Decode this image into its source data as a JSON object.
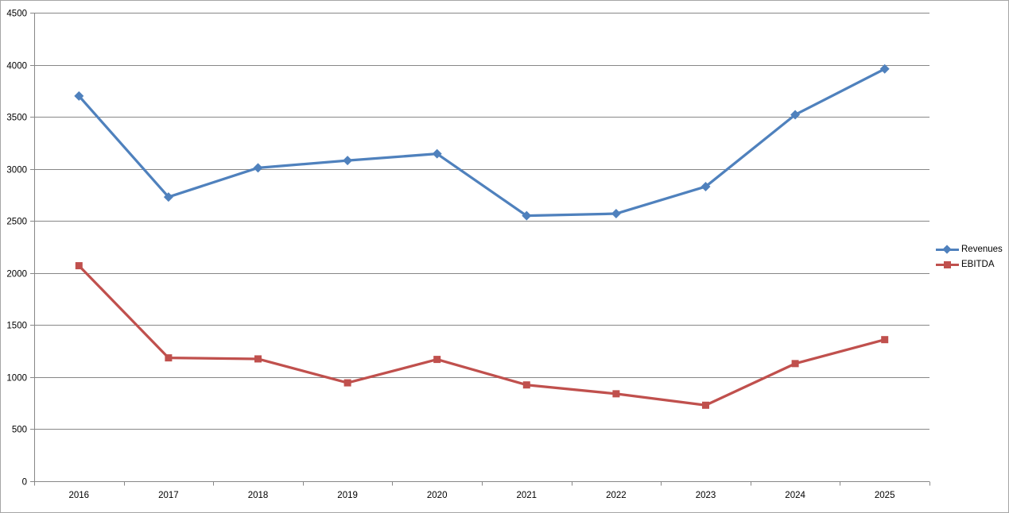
{
  "chart_data": {
    "type": "line",
    "title": "",
    "categories": [
      "2016",
      "2017",
      "2018",
      "2019",
      "2020",
      "2021",
      "2022",
      "2023",
      "2024",
      "2025"
    ],
    "series": [
      {
        "name": "Revenues",
        "color": "#4F81BD",
        "marker": "diamond",
        "values": [
          3700,
          2730,
          3010,
          3080,
          3145,
          2550,
          2570,
          2830,
          3520,
          3960
        ]
      },
      {
        "name": "EBITDA",
        "color": "#C0504D",
        "marker": "square",
        "values": [
          2070,
          1185,
          1175,
          945,
          1170,
          925,
          840,
          730,
          1130,
          1360
        ]
      }
    ],
    "xlabel": "",
    "ylabel": "",
    "ylim": [
      0,
      4500
    ],
    "ytick_interval": 500,
    "ytick_labels": [
      "0",
      "500",
      "1000",
      "1500",
      "2000",
      "2500",
      "3000",
      "3500",
      "4000",
      "4500"
    ],
    "grid": true,
    "legend_position": "right",
    "gridline_color": "#878787",
    "axis_color": "#878787",
    "text_color": "#000000",
    "background_color": "#FFFFFF",
    "border_color": "#A6A6A6"
  }
}
